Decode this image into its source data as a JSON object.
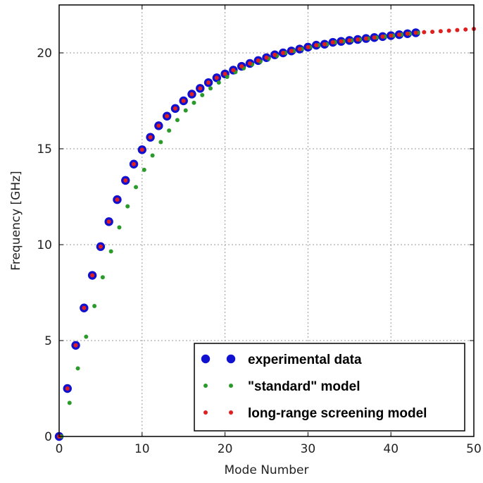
{
  "chart_data": {
    "type": "scatter",
    "title": "",
    "xlabel": "Mode Number",
    "ylabel": "Frequency [GHz]",
    "xlim": [
      0,
      50
    ],
    "ylim": [
      0,
      22.5
    ],
    "xticks": [
      0,
      10,
      20,
      30,
      40,
      50
    ],
    "yticks": [
      0,
      5,
      10,
      15,
      20
    ],
    "grid": true,
    "legend_position": "bottom-right",
    "series": [
      {
        "name": "experimental data",
        "color": "#1010d0",
        "marker": "large-dot",
        "points": [
          [
            0,
            0
          ],
          [
            1,
            2.5
          ],
          [
            2,
            4.75
          ],
          [
            3,
            6.7
          ],
          [
            4,
            8.4
          ],
          [
            5,
            9.9
          ],
          [
            6,
            11.2
          ],
          [
            7,
            12.35
          ],
          [
            8,
            13.35
          ],
          [
            9,
            14.2
          ],
          [
            10,
            14.95
          ],
          [
            11,
            15.6
          ],
          [
            12,
            16.2
          ],
          [
            13,
            16.7
          ],
          [
            14,
            17.1
          ],
          [
            15,
            17.5
          ],
          [
            16,
            17.85
          ],
          [
            17,
            18.15
          ],
          [
            18,
            18.45
          ],
          [
            19,
            18.7
          ],
          [
            20,
            18.9
          ],
          [
            21,
            19.1
          ],
          [
            22,
            19.3
          ],
          [
            23,
            19.45
          ],
          [
            24,
            19.6
          ],
          [
            25,
            19.75
          ],
          [
            26,
            19.9
          ],
          [
            27,
            20.0
          ],
          [
            28,
            20.1
          ],
          [
            29,
            20.2
          ],
          [
            30,
            20.3
          ],
          [
            31,
            20.4
          ],
          [
            32,
            20.45
          ],
          [
            33,
            20.55
          ],
          [
            34,
            20.6
          ],
          [
            35,
            20.65
          ],
          [
            36,
            20.7
          ],
          [
            37,
            20.75
          ],
          [
            38,
            20.8
          ],
          [
            39,
            20.85
          ],
          [
            40,
            20.9
          ],
          [
            41,
            20.95
          ],
          [
            42,
            21.0
          ],
          [
            43,
            21.05
          ]
        ]
      },
      {
        "name": "\"standard\" model",
        "color": "#2a9a2a",
        "marker": "small-dot",
        "points": [
          [
            0,
            0
          ],
          [
            1,
            1.75
          ],
          [
            2,
            3.55
          ],
          [
            3,
            5.2
          ],
          [
            4,
            6.8
          ],
          [
            5,
            8.3
          ],
          [
            6,
            9.65
          ],
          [
            7,
            10.9
          ],
          [
            8,
            12.0
          ],
          [
            9,
            13.0
          ],
          [
            10,
            13.9
          ],
          [
            11,
            14.65
          ],
          [
            12,
            15.35
          ],
          [
            13,
            15.95
          ],
          [
            14,
            16.5
          ],
          [
            15,
            17.0
          ],
          [
            16,
            17.4
          ],
          [
            17,
            17.8
          ],
          [
            18,
            18.15
          ],
          [
            19,
            18.45
          ],
          [
            20,
            18.75
          ],
          [
            21,
            19.0
          ],
          [
            22,
            19.2
          ],
          [
            23,
            19.4
          ],
          [
            24,
            19.55
          ],
          [
            25,
            19.7
          ],
          [
            26,
            19.85
          ],
          [
            27,
            20.0
          ],
          [
            28,
            20.1
          ],
          [
            29,
            20.2
          ],
          [
            30,
            20.3
          ],
          [
            31,
            20.4
          ],
          [
            32,
            20.45
          ],
          [
            33,
            20.55
          ],
          [
            34,
            20.6
          ],
          [
            35,
            20.65
          ],
          [
            36,
            20.7
          ],
          [
            37,
            20.75
          ],
          [
            38,
            20.8
          ],
          [
            39,
            20.85
          ],
          [
            40,
            20.9
          ],
          [
            41,
            20.95
          ],
          [
            42,
            21.0
          ],
          [
            43,
            21.05
          ]
        ]
      },
      {
        "name": "long-range screening model",
        "color": "#e02020",
        "marker": "small-dot",
        "points": [
          [
            0,
            0
          ],
          [
            1,
            2.5
          ],
          [
            2,
            4.75
          ],
          [
            3,
            6.7
          ],
          [
            4,
            8.4
          ],
          [
            5,
            9.9
          ],
          [
            6,
            11.2
          ],
          [
            7,
            12.35
          ],
          [
            8,
            13.35
          ],
          [
            9,
            14.2
          ],
          [
            10,
            14.95
          ],
          [
            11,
            15.6
          ],
          [
            12,
            16.2
          ],
          [
            13,
            16.7
          ],
          [
            14,
            17.1
          ],
          [
            15,
            17.5
          ],
          [
            16,
            17.85
          ],
          [
            17,
            18.15
          ],
          [
            18,
            18.45
          ],
          [
            19,
            18.7
          ],
          [
            20,
            18.9
          ],
          [
            21,
            19.1
          ],
          [
            22,
            19.3
          ],
          [
            23,
            19.45
          ],
          [
            24,
            19.6
          ],
          [
            25,
            19.75
          ],
          [
            26,
            19.9
          ],
          [
            27,
            20.0
          ],
          [
            28,
            20.1
          ],
          [
            29,
            20.2
          ],
          [
            30,
            20.3
          ],
          [
            31,
            20.4
          ],
          [
            32,
            20.45
          ],
          [
            33,
            20.55
          ],
          [
            34,
            20.6
          ],
          [
            35,
            20.65
          ],
          [
            36,
            20.7
          ],
          [
            37,
            20.75
          ],
          [
            38,
            20.8
          ],
          [
            39,
            20.85
          ],
          [
            40,
            20.9
          ],
          [
            41,
            20.95
          ],
          [
            42,
            21.0
          ],
          [
            43,
            21.05
          ],
          [
            44,
            21.08
          ],
          [
            45,
            21.1
          ],
          [
            46,
            21.13
          ],
          [
            47,
            21.16
          ],
          [
            48,
            21.19
          ],
          [
            49,
            21.22
          ],
          [
            50,
            21.25
          ]
        ]
      }
    ]
  }
}
